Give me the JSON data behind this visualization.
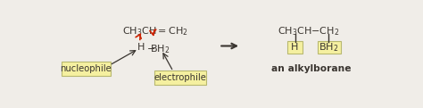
{
  "bg_color": "#f0ede8",
  "text_color": "#3a3530",
  "red_color": "#cc2200",
  "highlight_color": "#f5f0a0",
  "border_color": "#b8b870",
  "nucleophile_label": "nucleophile",
  "electrophile_label": "electrophile",
  "right_label": "an alkylborane",
  "figsize": [
    4.74,
    1.21
  ],
  "dpi": 100,
  "fs": 8.0,
  "fs_small": 6.8,
  "fs_label": 7.2
}
